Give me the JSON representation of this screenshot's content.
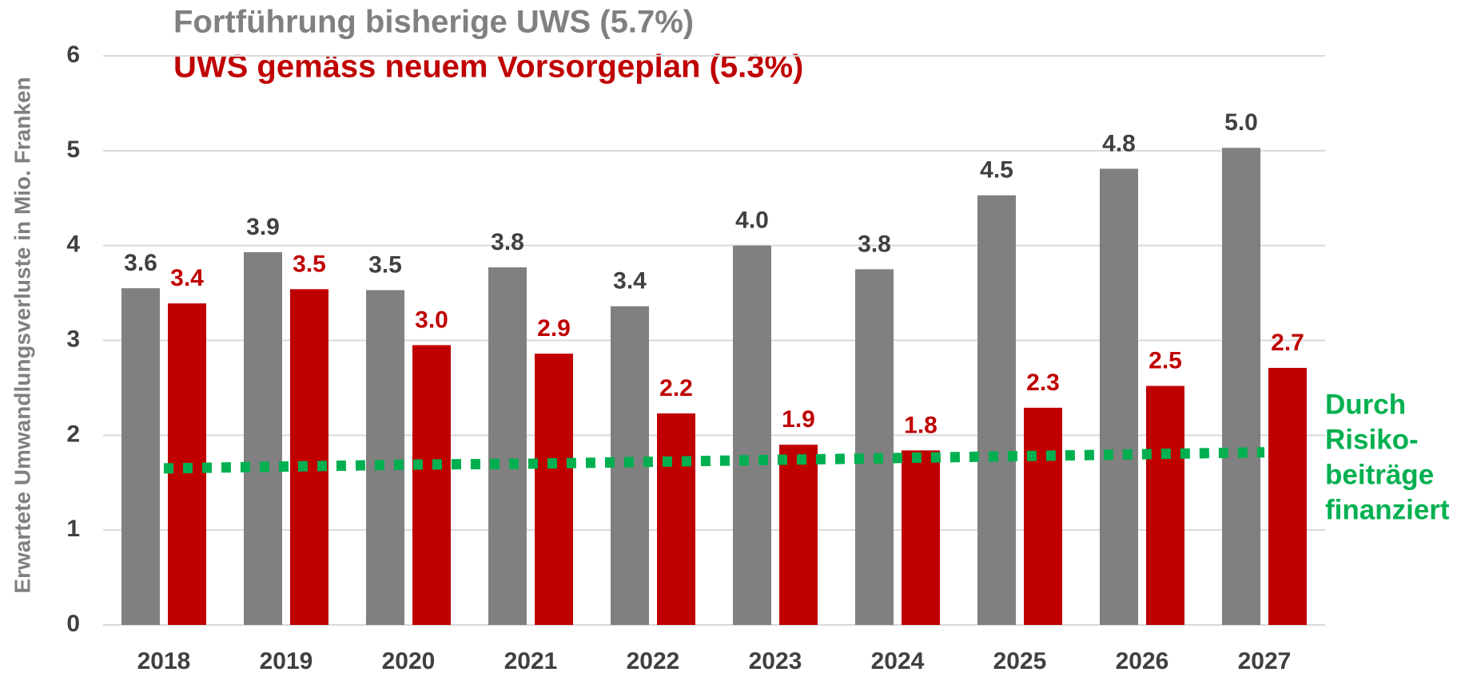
{
  "chart_data": {
    "type": "bar",
    "y_axis_label": "Erwartete Umwandlungsverluste in Mio. Franken",
    "categories": [
      "2018",
      "2019",
      "2020",
      "2021",
      "2022",
      "2023",
      "2024",
      "2025",
      "2026",
      "2027"
    ],
    "series": [
      {
        "name": "Fortführung bisherige UWS (5.7%)",
        "color": "#808080",
        "values": [
          3.55,
          3.93,
          3.53,
          3.77,
          3.36,
          4.0,
          3.75,
          4.53,
          4.81,
          5.03
        ],
        "value_labels": [
          "3.6",
          "3.9",
          "3.5",
          "3.8",
          "3.4",
          "4.0",
          "3.8",
          "4.5",
          "4.8",
          "5.0"
        ]
      },
      {
        "name": "UWS gemäss neuem Vorsorgeplan (5.3%)",
        "color": "#c00000",
        "values": [
          3.39,
          3.54,
          2.95,
          2.86,
          2.23,
          1.9,
          1.84,
          2.29,
          2.52,
          2.71
        ],
        "value_labels": [
          "3.4",
          "3.5",
          "3.0",
          "2.9",
          "2.2",
          "1.9",
          "1.8",
          "2.3",
          "2.5",
          "2.7"
        ]
      },
      {
        "type": "line",
        "name_lines": [
          "Durch",
          "Risiko-",
          "beiträge",
          "finanziert"
        ],
        "color": "#00b050",
        "values": [
          1.65,
          1.67,
          1.69,
          1.7,
          1.72,
          1.74,
          1.76,
          1.78,
          1.8,
          1.82
        ]
      }
    ],
    "ylim": [
      0,
      6
    ],
    "yticks": [
      0,
      1,
      2,
      3,
      4,
      5,
      6
    ],
    "grid": true
  }
}
